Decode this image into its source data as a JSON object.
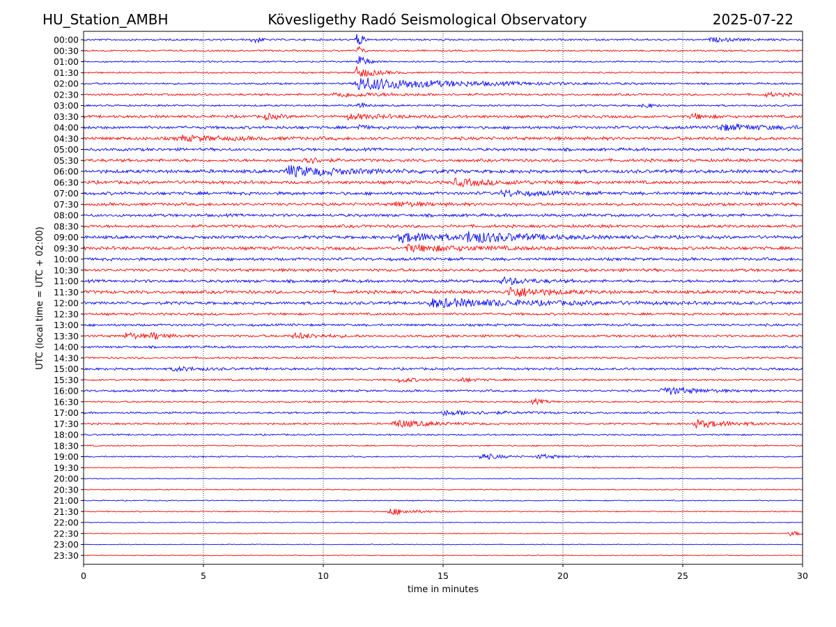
{
  "header": {
    "station": "HU_Station_AMBH",
    "observatory": "Kövesligethy Radó Seismological Observatory",
    "date": "2025-07-22"
  },
  "colors": {
    "even_rows": "#0000ff",
    "odd_rows": "#ff0000",
    "axes": "#000000",
    "grid": "#000000"
  },
  "chart_data": {
    "type": "line",
    "subtype": "helicorder",
    "xlabel": "time in minutes",
    "ylabel": "UTC (local time = UTC + 02:00)",
    "xlim": [
      0,
      30
    ],
    "xticks": [
      0,
      5,
      10,
      15,
      20,
      25,
      30
    ],
    "xtick_labels": [
      "0",
      "5",
      "10",
      "15",
      "20",
      "25",
      "30"
    ],
    "grid": "vertical dotted lines at x ticks",
    "row_labels": [
      "00:00",
      "00:30",
      "01:00",
      "01:30",
      "02:00",
      "02:30",
      "03:00",
      "03:30",
      "04:00",
      "04:30",
      "05:00",
      "05:30",
      "06:00",
      "06:30",
      "07:00",
      "07:30",
      "08:00",
      "08:30",
      "09:00",
      "09:30",
      "10:00",
      "10:30",
      "11:00",
      "11:30",
      "12:00",
      "12:30",
      "13:00",
      "13:30",
      "14:00",
      "14:30",
      "15:00",
      "15:30",
      "16:00",
      "16:30",
      "17:00",
      "17:30",
      "18:00",
      "18:30",
      "19:00",
      "19:30",
      "20:00",
      "20:30",
      "21:00",
      "21:30",
      "22:00",
      "22:30",
      "23:00",
      "23:30"
    ],
    "row_colors": "alternating blue (even rows) / red (odd rows)",
    "noise_levels": [
      0.35,
      0.3,
      0.3,
      0.3,
      0.35,
      0.4,
      0.35,
      0.5,
      0.55,
      0.6,
      0.55,
      0.55,
      0.65,
      0.6,
      0.6,
      0.55,
      0.55,
      0.55,
      0.6,
      0.6,
      0.55,
      0.55,
      0.55,
      0.6,
      0.55,
      0.45,
      0.45,
      0.45,
      0.4,
      0.35,
      0.45,
      0.35,
      0.4,
      0.3,
      0.35,
      0.35,
      0.3,
      0.25,
      0.25,
      0.2,
      0.15,
      0.2,
      0.2,
      0.2,
      0.15,
      0.15,
      0.15,
      0.15
    ],
    "events": [
      {
        "row": 0,
        "x": 7.1,
        "dur": 0.25,
        "amp": 2.2
      },
      {
        "row": 0,
        "x": 11.45,
        "dur": 0.2,
        "amp": 3.5
      },
      {
        "row": 0,
        "x": 26.2,
        "dur": 1.5,
        "amp": 0.8
      },
      {
        "row": 1,
        "x": 11.5,
        "dur": 0.15,
        "amp": 2.0
      },
      {
        "row": 2,
        "x": 11.5,
        "dur": 0.4,
        "amp": 2.8
      },
      {
        "row": 3,
        "x": 11.4,
        "dur": 1.0,
        "amp": 2.5
      },
      {
        "row": 4,
        "x": 11.4,
        "dur": 5.0,
        "amp": 3.0
      },
      {
        "row": 5,
        "x": 10.5,
        "dur": 3.0,
        "amp": 1.0
      },
      {
        "row": 5,
        "x": 28.5,
        "dur": 1.2,
        "amp": 0.8
      },
      {
        "row": 6,
        "x": 11.5,
        "dur": 0.3,
        "amp": 1.5
      },
      {
        "row": 6,
        "x": 23.4,
        "dur": 0.4,
        "amp": 1.2
      },
      {
        "row": 7,
        "x": 7.6,
        "dur": 0.8,
        "amp": 1.2
      },
      {
        "row": 7,
        "x": 11.0,
        "dur": 2.5,
        "amp": 1.0
      },
      {
        "row": 7,
        "x": 25.4,
        "dur": 0.8,
        "amp": 1.2
      },
      {
        "row": 8,
        "x": 11.5,
        "dur": 0.3,
        "amp": 1.2
      },
      {
        "row": 8,
        "x": 26.5,
        "dur": 3.5,
        "amp": 1.2
      },
      {
        "row": 9,
        "x": 4.0,
        "dur": 3.0,
        "amp": 1.0
      },
      {
        "row": 11,
        "x": 9.2,
        "dur": 0.6,
        "amp": 2.2
      },
      {
        "row": 12,
        "x": 8.5,
        "dur": 3.0,
        "amp": 2.3
      },
      {
        "row": 13,
        "x": 15.5,
        "dur": 2.5,
        "amp": 1.4
      },
      {
        "row": 14,
        "x": 17.5,
        "dur": 2.0,
        "amp": 1.2
      },
      {
        "row": 15,
        "x": 13.0,
        "dur": 1.5,
        "amp": 1.0
      },
      {
        "row": 18,
        "x": 13.2,
        "dur": 3.0,
        "amp": 2.0
      },
      {
        "row": 18,
        "x": 16.0,
        "dur": 3.5,
        "amp": 2.0
      },
      {
        "row": 19,
        "x": 13.5,
        "dur": 4.0,
        "amp": 1.3
      },
      {
        "row": 22,
        "x": 17.5,
        "dur": 1.5,
        "amp": 1.5
      },
      {
        "row": 23,
        "x": 17.8,
        "dur": 1.8,
        "amp": 2.5
      },
      {
        "row": 24,
        "x": 14.5,
        "dur": 6.0,
        "amp": 1.8
      },
      {
        "row": 27,
        "x": 1.8,
        "dur": 0.8,
        "amp": 1.5
      },
      {
        "row": 27,
        "x": 2.9,
        "dur": 0.6,
        "amp": 1.5
      },
      {
        "row": 27,
        "x": 8.8,
        "dur": 1.5,
        "amp": 1.2
      },
      {
        "row": 30,
        "x": 3.8,
        "dur": 1.2,
        "amp": 1.0
      },
      {
        "row": 31,
        "x": 13.2,
        "dur": 1.0,
        "amp": 1.0
      },
      {
        "row": 31,
        "x": 15.7,
        "dur": 0.8,
        "amp": 0.9
      },
      {
        "row": 32,
        "x": 24.2,
        "dur": 1.8,
        "amp": 1.8
      },
      {
        "row": 33,
        "x": 18.8,
        "dur": 0.6,
        "amp": 1.2
      },
      {
        "row": 34,
        "x": 15.0,
        "dur": 3.0,
        "amp": 1.0
      },
      {
        "row": 35,
        "x": 13.0,
        "dur": 1.8,
        "amp": 1.8
      },
      {
        "row": 35,
        "x": 25.5,
        "dur": 2.0,
        "amp": 1.8
      },
      {
        "row": 38,
        "x": 16.6,
        "dur": 1.0,
        "amp": 1.5
      },
      {
        "row": 38,
        "x": 19.0,
        "dur": 1.2,
        "amp": 1.0
      },
      {
        "row": 43,
        "x": 12.8,
        "dur": 1.2,
        "amp": 1.6
      },
      {
        "row": 45,
        "x": 29.5,
        "dur": 1.0,
        "amp": 1.0
      }
    ]
  }
}
